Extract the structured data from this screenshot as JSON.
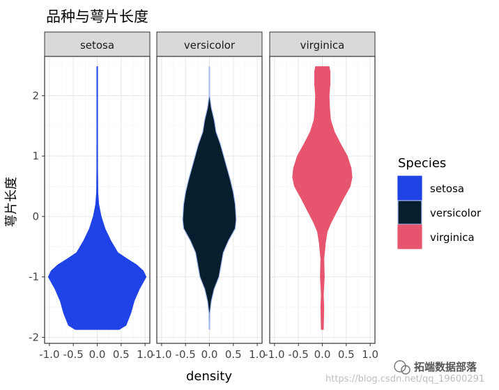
{
  "chart_data": {
    "type": "violin",
    "title": "品种与萼片长度",
    "xlabel": "density",
    "ylabel": "萼片长度",
    "ylim": [
      -2.1,
      2.65
    ],
    "y_ticks": [
      -2,
      -1,
      0,
      1,
      2
    ],
    "x_ticks": [
      "-1.0",
      "-0.5",
      "0.0",
      "0.5",
      "1.0"
    ],
    "xlim": [
      -1.1,
      1.1
    ],
    "grid": true,
    "legend": {
      "title": "Species",
      "position": "right",
      "entries": [
        {
          "name": "setosa",
          "fill": "#1f43e6"
        },
        {
          "name": "versicolor",
          "fill": "#071e2e"
        },
        {
          "name": "virginica",
          "fill": "#e6546e"
        }
      ]
    },
    "facets": [
      {
        "name": "setosa",
        "fill": "#1f43e6",
        "outline": "#1f43e6",
        "profile": [
          [
            -1.87,
            0.46
          ],
          [
            -1.8,
            0.6
          ],
          [
            -1.6,
            0.7
          ],
          [
            -1.4,
            0.77
          ],
          [
            -1.2,
            0.88
          ],
          [
            -1.0,
            1.02
          ],
          [
            -0.9,
            0.96
          ],
          [
            -0.8,
            0.82
          ],
          [
            -0.7,
            0.62
          ],
          [
            -0.6,
            0.43
          ],
          [
            -0.4,
            0.28
          ],
          [
            -0.2,
            0.16
          ],
          [
            0.0,
            0.08
          ],
          [
            0.2,
            0.03
          ],
          [
            0.4,
            0.012
          ],
          [
            0.8,
            0.007
          ],
          [
            1.5,
            0.006
          ],
          [
            2.48,
            0.006
          ]
        ]
      },
      {
        "name": "versicolor",
        "fill": "#071e2e",
        "outline": "#a7bdf2",
        "profile": [
          [
            -1.87,
            0.008
          ],
          [
            -1.6,
            0.01
          ],
          [
            -1.4,
            0.04
          ],
          [
            -1.2,
            0.1
          ],
          [
            -1.0,
            0.2
          ],
          [
            -0.6,
            0.29
          ],
          [
            -0.4,
            0.4
          ],
          [
            -0.2,
            0.54
          ],
          [
            -0.05,
            0.56
          ],
          [
            0.2,
            0.54
          ],
          [
            0.4,
            0.5
          ],
          [
            0.6,
            0.44
          ],
          [
            0.8,
            0.37
          ],
          [
            1.0,
            0.3
          ],
          [
            1.2,
            0.23
          ],
          [
            1.4,
            0.14
          ],
          [
            1.6,
            0.1
          ],
          [
            1.8,
            0.04
          ],
          [
            2.0,
            0.006
          ],
          [
            2.48,
            0.006
          ]
        ]
      },
      {
        "name": "virginica",
        "fill": "#e6546e",
        "outline": "#e6546e",
        "profile": [
          [
            -1.87,
            0.02
          ],
          [
            -1.5,
            0.03
          ],
          [
            -1.3,
            0.02
          ],
          [
            -1.0,
            0.04
          ],
          [
            -0.7,
            0.03
          ],
          [
            -0.55,
            0.05
          ],
          [
            -0.45,
            0.06
          ],
          [
            -0.35,
            0.08
          ],
          [
            -0.25,
            0.1
          ],
          [
            -0.1,
            0.18
          ],
          [
            0.1,
            0.31
          ],
          [
            0.3,
            0.44
          ],
          [
            0.5,
            0.58
          ],
          [
            0.65,
            0.62
          ],
          [
            0.8,
            0.6
          ],
          [
            1.0,
            0.52
          ],
          [
            1.2,
            0.38
          ],
          [
            1.4,
            0.25
          ],
          [
            1.6,
            0.17
          ],
          [
            1.8,
            0.15
          ],
          [
            2.0,
            0.14
          ],
          [
            2.2,
            0.16
          ],
          [
            2.4,
            0.16
          ],
          [
            2.48,
            0.14
          ]
        ]
      }
    ]
  },
  "watermark": {
    "brand": "拓端数据部落",
    "url": "https://blog.csdn.net/qq_19600291"
  }
}
